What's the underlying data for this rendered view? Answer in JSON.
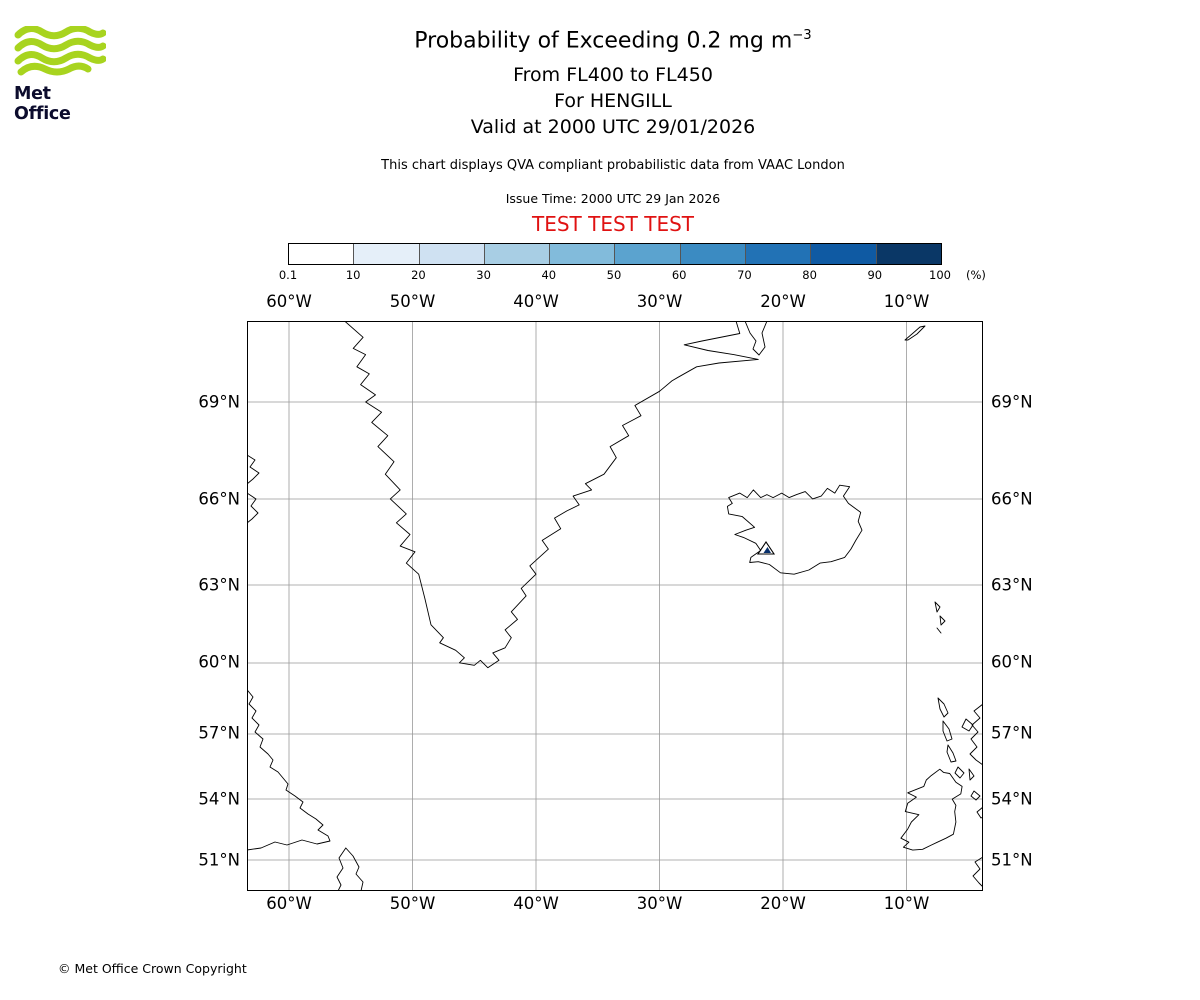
{
  "colors": {
    "accent_red": "#e01212",
    "logo_green": "#a8d41f",
    "logo_text": "#0c0c2d",
    "coastline": "#000000",
    "grid": "#999999",
    "marker_blue": "#08306b"
  },
  "header": {
    "logo_text": "Met Office",
    "title_main": "Probability of Exceeding 0.2 mg m",
    "title_sup": "−3",
    "subtitle_level": "From FL400 to FL450",
    "subtitle_site": "For HENGILL",
    "subtitle_valid": "Valid at 2000 UTC 29/01/2026",
    "description": "This chart displays QVA compliant probabilistic data from VAAC London",
    "issue_time": "Issue Time: 2000 UTC 29 Jan 2026",
    "test_banner": "TEST TEST TEST"
  },
  "colorbar": {
    "tick_labels": [
      "0.1",
      "10",
      "20",
      "30",
      "40",
      "50",
      "60",
      "70",
      "80",
      "90",
      "100"
    ],
    "unit_label": "(%)",
    "segment_colors": [
      "#ffffff",
      "#e5eff9",
      "#cfe1f2",
      "#a8cee4",
      "#82bbdb",
      "#5ba3cf",
      "#3b8bc2",
      "#2272b5",
      "#0f5aa3",
      "#0a3766"
    ]
  },
  "map": {
    "lon_labels": [
      "60°W",
      "50°W",
      "40°W",
      "30°W",
      "20°W",
      "10°W"
    ],
    "lat_labels": [
      "69°N",
      "66°N",
      "63°N",
      "60°N",
      "57°N",
      "54°N",
      "51°N"
    ]
  },
  "footer": {
    "copyright": "© Met Office Crown Copyright"
  }
}
